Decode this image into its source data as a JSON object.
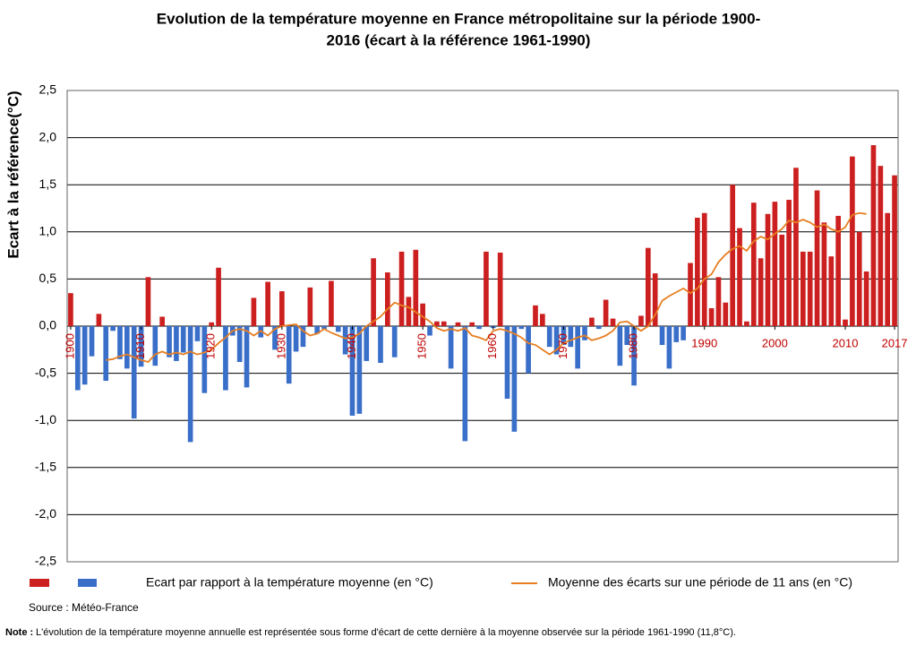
{
  "chart_data": {
    "type": "bar",
    "title_lines": [
      "Evolution de la température moyenne en France métropolitaine sur la période 1900-",
      "2016 (écart à la référence 1961-1990)"
    ],
    "y_label": "Ecart à la référence(°C)",
    "source": "Source  : Météo-France",
    "note_label": "Note :",
    "note": "L'évolution de la température moyenne annuelle est représentée sous forme d'écart de cette dernière à la moyenne observée sur la période 1961-1990 (11,8°C).",
    "x": [
      1900,
      1901,
      1902,
      1903,
      1904,
      1905,
      1906,
      1907,
      1908,
      1909,
      1910,
      1911,
      1912,
      1913,
      1914,
      1915,
      1916,
      1917,
      1918,
      1919,
      1920,
      1921,
      1922,
      1923,
      1924,
      1925,
      1926,
      1927,
      1928,
      1929,
      1930,
      1931,
      1932,
      1933,
      1934,
      1935,
      1936,
      1937,
      1938,
      1939,
      1940,
      1941,
      1942,
      1943,
      1944,
      1945,
      1946,
      1947,
      1948,
      1949,
      1950,
      1951,
      1952,
      1953,
      1954,
      1955,
      1956,
      1957,
      1958,
      1959,
      1960,
      1961,
      1962,
      1963,
      1964,
      1965,
      1966,
      1967,
      1968,
      1969,
      1970,
      1971,
      1972,
      1973,
      1974,
      1975,
      1976,
      1977,
      1978,
      1979,
      1980,
      1981,
      1982,
      1983,
      1984,
      1985,
      1986,
      1987,
      1988,
      1989,
      1990,
      1991,
      1992,
      1993,
      1994,
      1995,
      1996,
      1997,
      1998,
      1999,
      2000,
      2001,
      2002,
      2003,
      2004,
      2005,
      2006,
      2007,
      2008,
      2009,
      2010,
      2011,
      2012,
      2013,
      2014,
      2015,
      2016,
      2017
    ],
    "xlim": [
      1899.5,
      2017.5
    ],
    "xticks": [
      1900,
      1910,
      1920,
      1930,
      1940,
      1950,
      1960,
      1970,
      1980,
      1990,
      2000,
      2010,
      2017
    ],
    "ylim": [
      -2.5,
      2.5
    ],
    "yticks": [
      {
        "value": -2.5,
        "label": "-2,5"
      },
      {
        "value": -2,
        "label": "-2,0"
      },
      {
        "value": -1.5,
        "label": "-1,5"
      },
      {
        "value": -1,
        "label": "-1,0"
      },
      {
        "value": -0.5,
        "label": "-0,5"
      },
      {
        "value": 0,
        "label": "0,0"
      },
      {
        "value": 0.5,
        "label": "0,5"
      },
      {
        "value": 1,
        "label": "1,0"
      },
      {
        "value": 1.5,
        "label": "1,5"
      },
      {
        "value": 2,
        "label": "2,0"
      },
      {
        "value": 2.5,
        "label": "2,5"
      }
    ],
    "grid": true,
    "series": [
      {
        "name": "Ecart par rapport à la température moyenne (en °C)",
        "type": "bar",
        "color_positive": "#cc1f1f",
        "color_negative": "#3a6fc9",
        "values": [
          0.35,
          -0.68,
          -0.62,
          -0.32,
          0.13,
          -0.58,
          -0.05,
          -0.35,
          -0.45,
          -0.98,
          -0.43,
          0.52,
          -0.42,
          0.1,
          -0.33,
          -0.37,
          -0.28,
          -1.23,
          -0.16,
          -0.71,
          0.04,
          0.62,
          -0.68,
          -0.1,
          -0.38,
          -0.65,
          0.3,
          -0.12,
          0.47,
          -0.25,
          0.37,
          -0.61,
          -0.27,
          -0.22,
          0.41,
          -0.08,
          -0.03,
          0.48,
          -0.06,
          -0.3,
          -0.95,
          -0.93,
          -0.37,
          0.72,
          -0.39,
          0.57,
          -0.33,
          0.79,
          0.31,
          0.81,
          0.24,
          -0.1,
          0.05,
          0.05,
          -0.45,
          0.04,
          -1.22,
          0.04,
          -0.03,
          0.79,
          -0.02,
          0.78,
          -0.77,
          -1.12,
          -0.03,
          -0.5,
          0.22,
          0.13,
          -0.22,
          -0.3,
          -0.2,
          -0.22,
          -0.45,
          -0.15,
          0.09,
          -0.03,
          0.28,
          0.08,
          -0.42,
          -0.2,
          -0.63,
          0.11,
          0.83,
          0.56,
          -0.2,
          -0.45,
          -0.17,
          -0.15,
          0.67,
          1.15,
          1.2,
          0.19,
          0.52,
          0.25,
          1.5,
          1.04,
          0.05,
          1.31,
          0.72,
          1.19,
          1.32,
          0.97,
          1.34,
          1.68,
          0.79,
          0.79,
          1.44,
          1.1,
          0.74,
          1.17,
          0.07,
          1.8,
          1.0,
          0.58,
          1.92,
          1.7,
          1.2,
          1.6
        ]
      },
      {
        "name": "Moyenne des écarts sur une période de 11 ans (en °C)",
        "type": "line",
        "color": "#e67e22",
        "values": [
          null,
          null,
          null,
          null,
          null,
          -0.36,
          -0.35,
          -0.32,
          -0.3,
          -0.33,
          -0.36,
          -0.38,
          -0.3,
          -0.27,
          -0.3,
          -0.28,
          -0.3,
          -0.27,
          -0.3,
          -0.28,
          -0.25,
          -0.18,
          -0.12,
          -0.05,
          -0.03,
          -0.05,
          -0.1,
          -0.05,
          -0.1,
          -0.03,
          0.0,
          0.01,
          0.02,
          -0.05,
          -0.1,
          -0.08,
          -0.03,
          -0.07,
          -0.1,
          -0.13,
          -0.12,
          -0.08,
          0.0,
          0.05,
          0.1,
          0.18,
          0.25,
          0.22,
          0.2,
          0.15,
          0.1,
          0.05,
          -0.02,
          -0.05,
          -0.03,
          -0.05,
          -0.02,
          -0.1,
          -0.12,
          -0.15,
          -0.05,
          -0.03,
          -0.05,
          -0.08,
          -0.12,
          -0.18,
          -0.2,
          -0.25,
          -0.3,
          -0.25,
          -0.18,
          -0.15,
          -0.12,
          -0.1,
          -0.15,
          -0.13,
          -0.1,
          -0.05,
          0.04,
          0.05,
          0.0,
          -0.05,
          0.0,
          0.12,
          0.27,
          0.32,
          0.36,
          0.4,
          0.35,
          0.4,
          0.5,
          0.55,
          0.68,
          0.76,
          0.82,
          0.85,
          0.8,
          0.9,
          0.95,
          0.92,
          0.98,
          1.03,
          1.12,
          1.1,
          1.13,
          1.1,
          1.05,
          1.08,
          1.03,
          1.0,
          1.05,
          1.18,
          1.2,
          1.19,
          null,
          null,
          null,
          null
        ]
      }
    ]
  }
}
